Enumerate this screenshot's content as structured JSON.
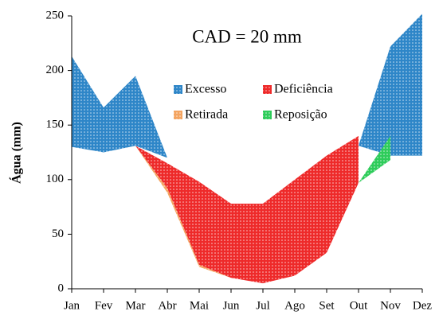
{
  "chart_data": {
    "type": "band-area",
    "annotation": "CAD = 20 mm",
    "y_label": "Água (mm)",
    "categories": [
      "Jan",
      "Fev",
      "Mar",
      "Abr",
      "Mai",
      "Jun",
      "Jul",
      "Ago",
      "Set",
      "Out",
      "Nov",
      "Dez"
    ],
    "series": [
      {
        "name": "Excesso",
        "color": "#2e86c8",
        "values": [
          213,
          166,
          195,
          120,
          null,
          null,
          null,
          null,
          null,
          131,
          222,
          252
        ],
        "lower": [
          130,
          125,
          131,
          120,
          null,
          null,
          null,
          null,
          null,
          131,
          122,
          122
        ]
      },
      {
        "name": "Deficiência",
        "color": "#ee2a2a",
        "values": [
          null,
          null,
          131,
          115,
          98,
          78,
          78,
          100,
          122,
          140,
          null,
          null
        ],
        "lower": [
          null,
          null,
          131,
          92,
          22,
          10,
          5,
          12,
          33,
          97,
          null,
          null
        ]
      },
      {
        "name": "Retirada",
        "color": "#f4a460",
        "values": [
          null,
          null,
          131,
          92,
          22,
          10,
          null,
          null,
          null,
          null,
          null,
          null
        ],
        "lower": [
          null,
          null,
          131,
          88,
          20,
          10,
          null,
          null,
          null,
          null,
          null,
          null
        ]
      },
      {
        "name": "Reposição",
        "color": "#2ecc5a",
        "values": [
          null,
          null,
          null,
          null,
          null,
          null,
          null,
          null,
          null,
          97,
          140,
          null
        ],
        "lower": [
          null,
          null,
          null,
          null,
          null,
          null,
          null,
          null,
          null,
          97,
          118,
          null
        ]
      }
    ],
    "ylim": [
      0,
      250
    ],
    "yticks": [
      0,
      50,
      100,
      150,
      200,
      250
    ],
    "grid": false
  }
}
